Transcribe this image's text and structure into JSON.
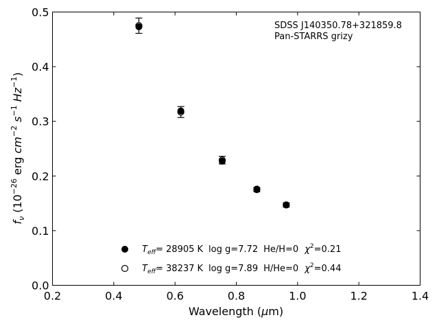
{
  "chart_data": {
    "type": "scatter",
    "title": "",
    "xlabel": {
      "pre": "Wavelength (",
      "greek": "μ",
      "post": "m)"
    },
    "ylabel": {
      "f": "f",
      "nu": "ν",
      "mid1": " (10",
      "exp26": "−26",
      "erg": " erg ",
      "cm": "cm",
      "exp2": "−2",
      "s": " s",
      "exp1a": "−1",
      "hz": " Hz",
      "exp1b": "−1",
      "close": ")"
    },
    "xlim": [
      0.2,
      1.4
    ],
    "ylim": [
      0.0,
      0.5
    ],
    "xticks": [
      "0.2",
      "0.4",
      "0.6",
      "0.8",
      "1.0",
      "1.2",
      "1.4"
    ],
    "yticks": [
      "0.0",
      "0.1",
      "0.2",
      "0.3",
      "0.4",
      "0.5"
    ],
    "grid": false,
    "legend_position": "bottom-center",
    "annotation": {
      "line1": "SDSS J140350.78+321859.8",
      "line2": "Pan-STARRS grizy"
    },
    "observed": {
      "x": [
        0.482,
        0.619,
        0.754,
        0.867,
        0.963
      ],
      "y": [
        0.475,
        0.317,
        0.229,
        0.175,
        0.147
      ],
      "yerr": [
        0.014,
        0.01,
        0.007,
        0.004,
        0.004
      ]
    },
    "series": [
      {
        "marker": "filled-circle",
        "x": [
          0.482,
          0.619,
          0.754,
          0.867,
          0.963
        ],
        "y": [
          0.473,
          0.319,
          0.227,
          0.176,
          0.147
        ],
        "legend": {
          "teff": "T",
          "eff": "eff",
          "temp": "= 28905 K",
          "logg": "log g=7.72",
          "comp": "He/H=0",
          "chi": "χ",
          "chisq": "=0.21"
        }
      },
      {
        "marker": "open-circle",
        "x": [
          0.482,
          0.619,
          0.754,
          0.867,
          0.963
        ],
        "y": [
          0.475,
          0.317,
          0.229,
          0.175,
          0.147
        ],
        "legend": {
          "teff": "T",
          "eff": "eff",
          "temp": "= 38237 K",
          "logg": "log g=7.89",
          "comp": "H/He=0",
          "chi": "χ",
          "chisq": "=0.44"
        }
      }
    ]
  }
}
